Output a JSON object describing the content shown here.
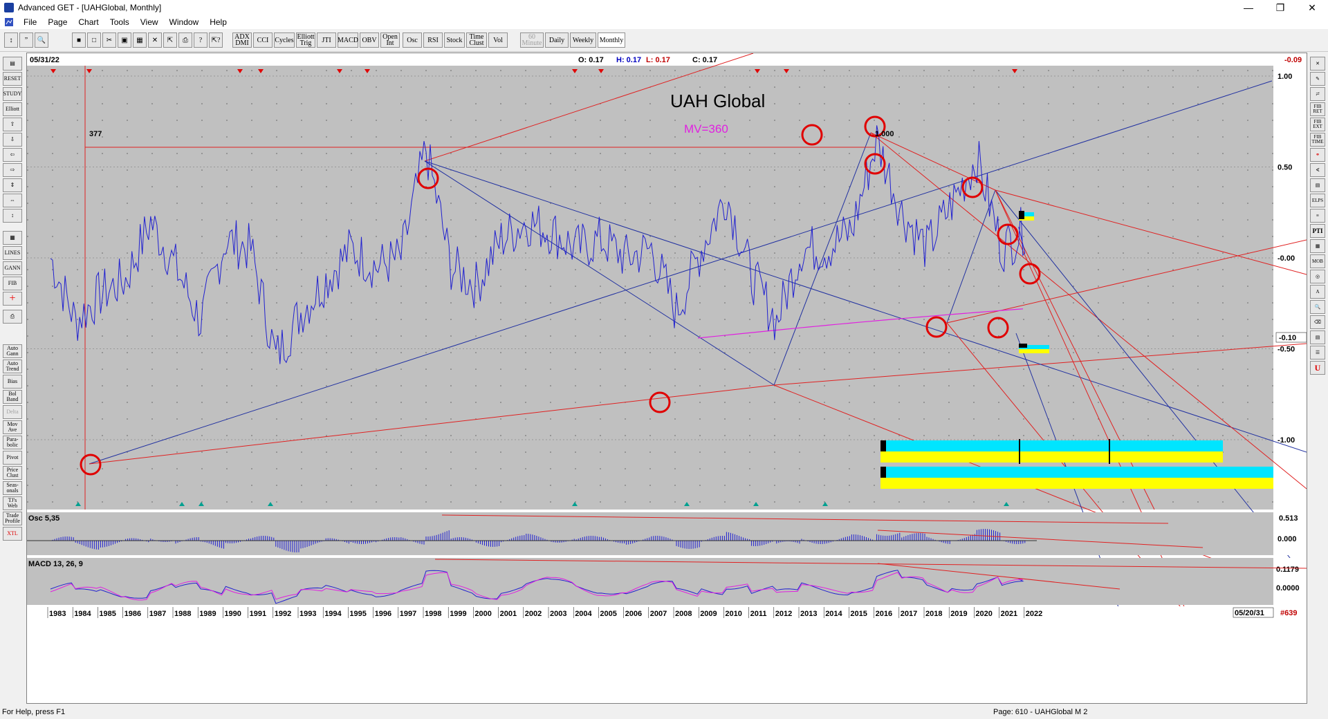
{
  "window": {
    "title": "Advanced GET - [UAHGlobal, Monthly]"
  },
  "menu": [
    "File",
    "Page",
    "Chart",
    "Tools",
    "View",
    "Window",
    "Help"
  ],
  "toolbar": {
    "studies": [
      "ADX DMI",
      "CCI",
      "Cycles",
      "Elliott Trig",
      "JTI",
      "MACD",
      "OBV",
      "Open Int",
      "Osc",
      "RSI",
      "Stock",
      "Time Clust",
      "Vol"
    ],
    "timeframes": [
      "60 Minute",
      "Daily",
      "Weekly",
      "Monthly"
    ]
  },
  "left_toolbar": [
    "RESET",
    "STUDY",
    "Elliott",
    "LINES",
    "GANN",
    "FIB",
    "Auto Gann",
    "Auto Trend",
    "Bias",
    "Bol Band",
    "Delta",
    "Mov Ave",
    "Para-bolic",
    "Pivot",
    "Price Clust",
    "Seas-onals",
    "TJ's Web",
    "Trade Profile",
    "XTL"
  ],
  "right_toolbar": [
    "FIB RET",
    "FIB EXT",
    "FIB TIME",
    "ELPS",
    "PTI",
    "MOB"
  ],
  "chart": {
    "date": "05/31/22",
    "ohlc": {
      "o": "O: 0.17",
      "h": "H: 0.17",
      "l": "L: 0.17",
      "c": "C: 0.17"
    },
    "last_change": "-0.09",
    "title": "UAH Global",
    "mv_label": "MV=360",
    "count_left": "377",
    "count_right": "1.000",
    "current_price_label": "-0.10",
    "x_end_label": "05/20/31",
    "bars_label": "#639",
    "osc_label": "Osc 5,35",
    "osc_top": "0.513",
    "osc_zero": "0.000",
    "macd_label": "MACD 13, 26, 9",
    "macd_top": "0.1179",
    "macd_zero": "0.0000",
    "colors": {
      "price": "#2020d0",
      "trend": "#e02020",
      "mv": "#e020e0",
      "highlight": "#00e5ff",
      "yellow": "#ffff00"
    }
  },
  "chart_data": {
    "type": "line",
    "title": "UAH Global",
    "xlabel": "",
    "ylabel": "",
    "x": [
      "1983",
      "1984",
      "1985",
      "1986",
      "1987",
      "1988",
      "1989",
      "1990",
      "1991",
      "1992",
      "1993",
      "1994",
      "1995",
      "1996",
      "1997",
      "1998",
      "1999",
      "2000",
      "2001",
      "2002",
      "2003",
      "2004",
      "2005",
      "2006",
      "2007",
      "2008",
      "2009",
      "2010",
      "2011",
      "2012",
      "2013",
      "2014",
      "2015",
      "2016",
      "2017",
      "2018",
      "2019",
      "2020",
      "2021",
      "2022"
    ],
    "y_ticks": [
      "1.00",
      "0.50",
      "-0.00",
      "-0.50",
      "-1.00"
    ],
    "ylim": [
      -1.15,
      1.1
    ],
    "series": [
      {
        "values": [
          0.0,
          -0.35,
          -0.2,
          -0.12,
          0.2,
          -0.05,
          -0.35,
          0.1,
          0.05,
          -0.55,
          -0.3,
          -0.12,
          0.05,
          -0.05,
          0.0,
          0.6,
          -0.05,
          -0.15,
          0.1,
          0.2,
          0.15,
          0.05,
          0.1,
          0.0,
          0.05,
          -0.3,
          0.05,
          0.35,
          -0.1,
          -0.35,
          0.05,
          0.05,
          0.15,
          0.65,
          0.25,
          0.05,
          0.3,
          0.55,
          0.05,
          0.17
        ]
      }
    ],
    "grid": true
  },
  "status": {
    "left": "For Help, press F1",
    "right": "Page: 610 - UAHGlobal M 2"
  }
}
